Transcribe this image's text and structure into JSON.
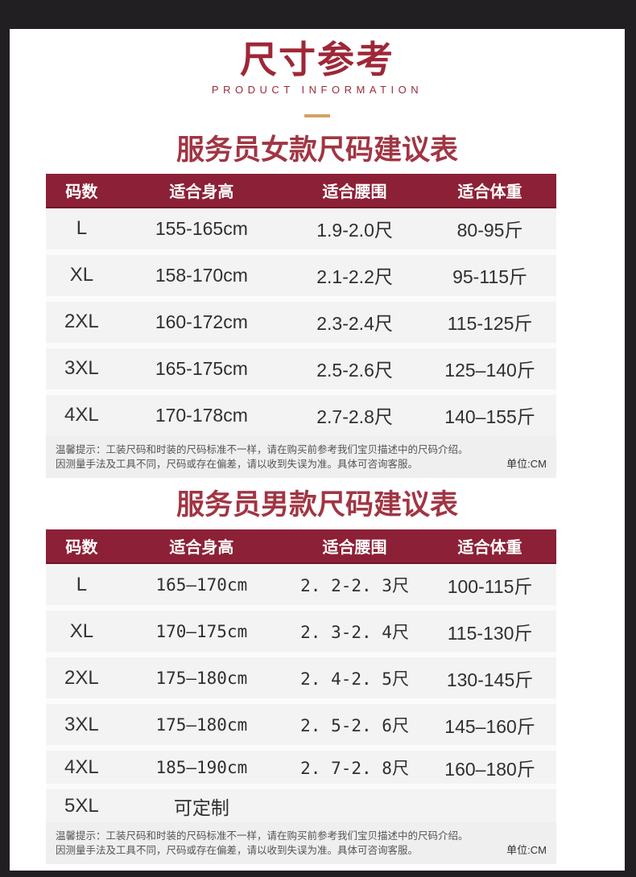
{
  "header": {
    "title": "尺寸参考",
    "subtitle": "PRODUCT INFORMATION",
    "accent_color": "#9e2737",
    "divider_color": "#cfa365"
  },
  "colors": {
    "frame_border": "#211f21",
    "table_header_bg": "#8c2036",
    "table_header_text": "#ffffff",
    "heading_red": "#a13543",
    "panel_bg": "#f3f3f3"
  },
  "tables": [
    {
      "heading": "服务员女款尺码建议表",
      "columns": [
        "码数",
        "适合身高",
        "适合腰围",
        "适合体重"
      ],
      "rows": [
        {
          "size": "L",
          "height": "155-165cm",
          "waist": "1.9-2.0尺",
          "weight": "80-95斤"
        },
        {
          "size": "XL",
          "height": "158-170cm",
          "waist": "2.1-2.2尺",
          "weight": "95-115斤"
        },
        {
          "size": "2XL",
          "height": "160-172cm",
          "waist": "2.3-2.4尺",
          "weight": "115-125斤"
        },
        {
          "size": "3XL",
          "height": "165-175cm",
          "waist": "2.5-2.6尺",
          "weight": "125–140斤"
        },
        {
          "size": "4XL",
          "height": "170-178cm",
          "waist": "2.7-2.8尺",
          "weight": "140–155斤"
        }
      ],
      "note_line1": "温馨提示：工装尺码和时装的尺码标准不一样，请在购买前参考我们宝贝描述中的尺码介绍。",
      "note_line2": "因测量手法及工具不同，尺码或存在偏差，请以收到失误为准。具体可咨询客服。",
      "unit_label": "单位:CM"
    },
    {
      "heading": "服务员男款尺码建议表",
      "columns": [
        "码数",
        "适合身高",
        "适合腰围",
        "适合体重"
      ],
      "rows": [
        {
          "size": "L",
          "height": "165–170cm",
          "waist": "2. 2-2. 3尺",
          "weight": "100-115斤"
        },
        {
          "size": "XL",
          "height": "170–175cm",
          "waist": "2. 3-2. 4尺",
          "weight": "115-130斤"
        },
        {
          "size": "2XL",
          "height": "175–180cm",
          "waist": "2. 4-2. 5尺",
          "weight": "130-145斤"
        },
        {
          "size": "3XL",
          "height": "175–180cm",
          "waist": "2. 5-2. 6尺",
          "weight": "145–160斤"
        },
        {
          "size": "4XL",
          "height": "185–190cm",
          "waist": "2. 7-2. 8尺",
          "weight": "160–180斤"
        },
        {
          "size": "5XL",
          "height": "可定制",
          "waist": "",
          "weight": ""
        }
      ],
      "note_line1": "温馨提示：工装尺码和时装的尺码标准不一样，请在购买前参考我们宝贝描述中的尺码介绍。",
      "note_line2": "因测量手法及工具不同，尺码或存在偏差，请以收到失误为准。具体可咨询客服。",
      "unit_label": "单位:CM"
    }
  ]
}
